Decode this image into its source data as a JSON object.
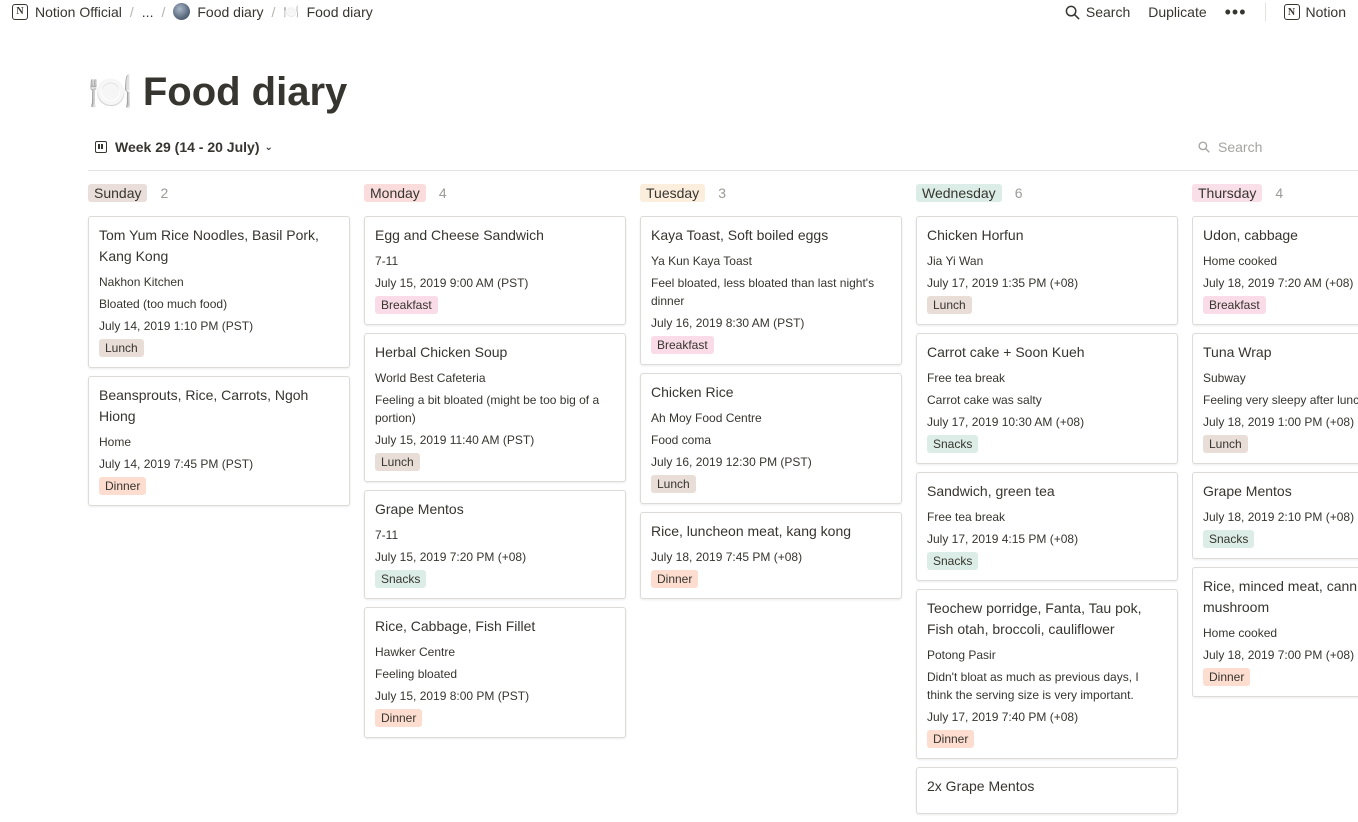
{
  "breadcrumb": {
    "items": [
      {
        "label": "Notion Official",
        "icon": "notion-logo-icon"
      },
      {
        "label": "..."
      },
      {
        "label": "Food diary",
        "icon": "workspace-avatar-icon"
      },
      {
        "label": "Food diary",
        "icon": "plate-icon"
      }
    ]
  },
  "actions": {
    "search": "Search",
    "duplicate": "Duplicate",
    "more": "•••",
    "notion": "Notion"
  },
  "page": {
    "emoji": "🍽️",
    "title": "Food diary"
  },
  "view": {
    "name": "Week 29 (14 - 20 July)",
    "search_placeholder": "Search"
  },
  "colors": {
    "Sunday": "#e9ded9",
    "Monday": "#fadcdc",
    "Tuesday": "#fbeedd",
    "Wednesday": "#dbede6",
    "Thursday": "#f9dfe8",
    "Lunch": "#e9ddd8",
    "Dinner": "#fcddd0",
    "Breakfast": "#f9dce7",
    "Snacks": "#dbede6"
  },
  "columns": [
    {
      "day": "Sunday",
      "count": "2",
      "cards": [
        {
          "title": "Tom Yum Rice Noodles, Basil Pork, Kang Kong",
          "place": "Nakhon Kitchen",
          "note": "Bloated (too much food)",
          "time": "July 14, 2019 1:10 PM (PST)",
          "meal": "Lunch"
        },
        {
          "title": "Beansprouts, Rice, Carrots, Ngoh Hiong",
          "place": "Home",
          "note": "",
          "time": "July 14, 2019 7:45 PM (PST)",
          "meal": "Dinner"
        }
      ]
    },
    {
      "day": "Monday",
      "count": "4",
      "cards": [
        {
          "title": "Egg and Cheese Sandwich",
          "place": "7-11",
          "note": "",
          "time": "July 15, 2019 9:00 AM (PST)",
          "meal": "Breakfast"
        },
        {
          "title": "Herbal Chicken Soup",
          "place": "World Best Cafeteria",
          "note": "Feeling a bit bloated (might be too big of a portion)",
          "time": "July 15, 2019 11:40 AM (PST)",
          "meal": "Lunch"
        },
        {
          "title": "Grape Mentos",
          "place": "7-11",
          "note": "",
          "time": "July 15, 2019 7:20 PM (+08)",
          "meal": "Snacks"
        },
        {
          "title": "Rice, Cabbage, Fish Fillet",
          "place": "Hawker Centre",
          "note": "Feeling bloated",
          "time": "July 15, 2019 8:00 PM (PST)",
          "meal": "Dinner"
        }
      ]
    },
    {
      "day": "Tuesday",
      "count": "3",
      "cards": [
        {
          "title": "Kaya Toast, Soft boiled eggs",
          "place": "Ya Kun Kaya Toast",
          "note": "Feel bloated, less bloated than last night's dinner",
          "time": "July 16, 2019 8:30 AM (PST)",
          "meal": "Breakfast"
        },
        {
          "title": "Chicken Rice",
          "place": "Ah Moy Food Centre",
          "note": "Food coma",
          "time": "July 16, 2019 12:30 PM (PST)",
          "meal": "Lunch"
        },
        {
          "title": "Rice, luncheon meat, kang kong",
          "place": "",
          "note": "",
          "time": "July 18, 2019 7:45 PM (+08)",
          "meal": "Dinner"
        }
      ]
    },
    {
      "day": "Wednesday",
      "count": "6",
      "cards": [
        {
          "title": "Chicken Horfun",
          "place": "Jia Yi Wan",
          "note": "",
          "time": "July 17, 2019 1:35 PM (+08)",
          "meal": "Lunch"
        },
        {
          "title": "Carrot cake + Soon Kueh",
          "place": "Free tea break",
          "note": "Carrot cake was salty",
          "time": "July 17, 2019 10:30 AM (+08)",
          "meal": "Snacks"
        },
        {
          "title": "Sandwich, green tea",
          "place": "Free tea break",
          "note": "",
          "time": "July 17, 2019 4:15 PM (+08)",
          "meal": "Snacks"
        },
        {
          "title": "Teochew porridge, Fanta, Tau pok, Fish otah, broccoli, cauliflower",
          "place": "Potong Pasir",
          "note": "Didn't bloat as much as previous days, I think the serving size is very important.",
          "time": "July 17, 2019 7:40 PM (+08)",
          "meal": "Dinner"
        },
        {
          "title": "2x Grape Mentos",
          "place": "",
          "note": "",
          "time": "",
          "meal": ""
        }
      ]
    },
    {
      "day": "Thursday",
      "count": "4",
      "cards": [
        {
          "title": "Udon, cabbage",
          "place": "Home cooked",
          "note": "",
          "time": "July 18, 2019 7:20 AM (+08)",
          "meal": "Breakfast"
        },
        {
          "title": "Tuna Wrap",
          "place": "Subway",
          "note": "Feeling very sleepy after lunc",
          "time": "July 18, 2019 1:00 PM (+08)",
          "meal": "Lunch"
        },
        {
          "title": "Grape Mentos",
          "place": "",
          "note": "",
          "time": "July 18, 2019 2:10 PM (+08)",
          "meal": "Snacks"
        },
        {
          "title": "Rice, minced meat, cann mushroom",
          "place": "Home cooked",
          "note": "",
          "time": "July 18, 2019 7:00 PM (+08)",
          "meal": "Dinner"
        }
      ]
    }
  ]
}
